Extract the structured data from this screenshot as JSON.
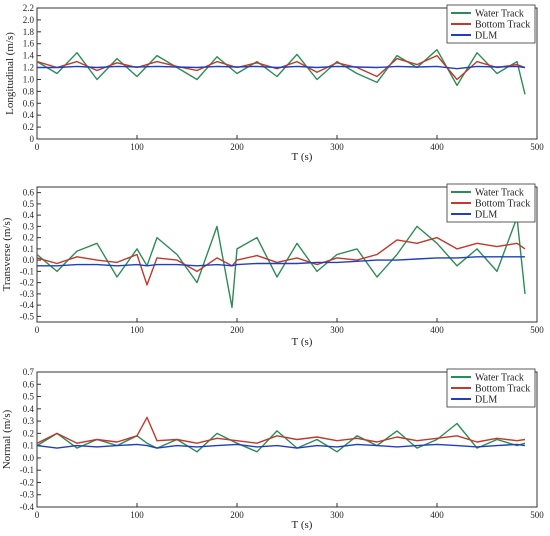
{
  "colors": {
    "water": "#2e8b57",
    "bottom": "#c0392b",
    "dlm": "#1f3fbf",
    "axis": "#333333"
  },
  "chart_data": [
    {
      "type": "line",
      "xlabel": "T (s)",
      "ylabel": "Longitudinal (m/s)",
      "xlim": [
        0,
        500
      ],
      "ylim": [
        0,
        2.2
      ],
      "xticks": [
        "0",
        "100",
        "200",
        "300",
        "400",
        "500"
      ],
      "yticks": [
        "0",
        "0.2",
        "0.4",
        "0.6",
        "0.8",
        "1.0",
        "1.2",
        "1.4",
        "1.6",
        "1.8",
        "2.0",
        "2.2"
      ],
      "legend_position": "top-right",
      "grid": false,
      "x": [
        0,
        20,
        40,
        60,
        80,
        100,
        120,
        140,
        160,
        180,
        200,
        220,
        240,
        260,
        280,
        300,
        320,
        340,
        360,
        380,
        400,
        420,
        440,
        460,
        480,
        488
      ],
      "series": [
        {
          "name": "Water Track",
          "color_key": "water",
          "values": [
            1.3,
            1.1,
            1.45,
            1.0,
            1.35,
            1.05,
            1.4,
            1.2,
            1.0,
            1.38,
            1.1,
            1.3,
            1.05,
            1.42,
            1.0,
            1.3,
            1.1,
            0.95,
            1.4,
            1.2,
            1.5,
            0.9,
            1.45,
            1.1,
            1.3,
            0.75
          ]
        },
        {
          "name": "Bottom Track",
          "color_key": "bottom",
          "values": [
            1.3,
            1.2,
            1.3,
            1.15,
            1.28,
            1.2,
            1.3,
            1.22,
            1.15,
            1.3,
            1.2,
            1.28,
            1.18,
            1.3,
            1.12,
            1.28,
            1.2,
            1.05,
            1.35,
            1.25,
            1.4,
            1.0,
            1.3,
            1.2,
            1.25,
            1.2
          ]
        },
        {
          "name": "DLM",
          "color_key": "dlm",
          "values": [
            1.2,
            1.2,
            1.22,
            1.2,
            1.22,
            1.21,
            1.22,
            1.21,
            1.2,
            1.22,
            1.21,
            1.22,
            1.2,
            1.22,
            1.2,
            1.22,
            1.21,
            1.2,
            1.22,
            1.21,
            1.22,
            1.18,
            1.22,
            1.21,
            1.22,
            1.2
          ]
        }
      ]
    },
    {
      "type": "line",
      "xlabel": "T (s)",
      "ylabel": "Transverse (m/s)",
      "xlim": [
        0,
        500
      ],
      "ylim": [
        -0.55,
        0.65
      ],
      "xticks": [
        "0",
        "100",
        "200",
        "300",
        "400",
        "500"
      ],
      "yticks": [
        "-0.5",
        "-0.4",
        "-0.3",
        "-0.2",
        "-0.1",
        "0.0",
        "0.1",
        "0.2",
        "0.3",
        "0.4",
        "0.5",
        "0.6"
      ],
      "legend_position": "top-right",
      "grid": false,
      "x": [
        0,
        20,
        40,
        60,
        80,
        100,
        110,
        120,
        140,
        160,
        180,
        195,
        200,
        220,
        240,
        260,
        280,
        300,
        320,
        340,
        360,
        380,
        400,
        420,
        440,
        460,
        480,
        488
      ],
      "series": [
        {
          "name": "Water Track",
          "color_key": "water",
          "values": [
            0.05,
            -0.1,
            0.08,
            0.15,
            -0.15,
            0.1,
            -0.05,
            0.2,
            0.05,
            -0.2,
            0.3,
            -0.42,
            0.1,
            0.2,
            -0.15,
            0.15,
            -0.1,
            0.05,
            0.1,
            -0.15,
            0.05,
            0.3,
            0.15,
            -0.05,
            0.1,
            -0.1,
            0.38,
            -0.3
          ]
        },
        {
          "name": "Bottom Track",
          "color_key": "bottom",
          "values": [
            0.02,
            -0.03,
            0.03,
            0.0,
            -0.02,
            0.05,
            -0.22,
            0.02,
            0.0,
            -0.1,
            0.02,
            -0.05,
            0.0,
            0.04,
            -0.02,
            0.02,
            -0.04,
            0.02,
            0.0,
            0.05,
            0.18,
            0.15,
            0.2,
            0.1,
            0.15,
            0.12,
            0.15,
            0.1
          ]
        },
        {
          "name": "DLM",
          "color_key": "dlm",
          "values": [
            -0.05,
            -0.05,
            -0.04,
            -0.04,
            -0.05,
            -0.04,
            -0.05,
            -0.04,
            -0.04,
            -0.05,
            -0.04,
            -0.05,
            -0.04,
            -0.03,
            -0.03,
            -0.03,
            -0.02,
            -0.02,
            -0.01,
            0.0,
            0.0,
            0.01,
            0.02,
            0.02,
            0.03,
            0.03,
            0.03,
            0.03
          ]
        }
      ]
    },
    {
      "type": "line",
      "xlabel": "T (s)",
      "ylabel": "Normal (m/s)",
      "xlim": [
        0,
        500
      ],
      "ylim": [
        -0.4,
        0.7
      ],
      "xticks": [
        "0",
        "100",
        "200",
        "300",
        "400",
        "500"
      ],
      "yticks": [
        "-0.4",
        "-0.3",
        "-0.2",
        "-0.1",
        "0.0",
        "0.1",
        "0.2",
        "0.3",
        "0.4",
        "0.5",
        "0.6",
        "0.7"
      ],
      "legend_position": "top-right",
      "grid": false,
      "x": [
        0,
        20,
        40,
        60,
        80,
        100,
        110,
        120,
        140,
        160,
        180,
        200,
        220,
        240,
        260,
        280,
        300,
        320,
        340,
        360,
        380,
        400,
        420,
        440,
        460,
        480,
        488
      ],
      "series": [
        {
          "name": "Water Track",
          "color_key": "water",
          "values": [
            0.1,
            0.2,
            0.08,
            0.15,
            0.1,
            0.18,
            0.12,
            0.08,
            0.15,
            0.05,
            0.2,
            0.12,
            0.05,
            0.22,
            0.08,
            0.15,
            0.05,
            0.18,
            0.1,
            0.22,
            0.08,
            0.15,
            0.28,
            0.08,
            0.15,
            0.1,
            0.12
          ]
        },
        {
          "name": "Bottom Track",
          "color_key": "bottom",
          "values": [
            0.12,
            0.2,
            0.12,
            0.15,
            0.13,
            0.18,
            0.33,
            0.14,
            0.15,
            0.12,
            0.16,
            0.14,
            0.12,
            0.18,
            0.15,
            0.17,
            0.14,
            0.16,
            0.13,
            0.17,
            0.14,
            0.16,
            0.18,
            0.13,
            0.16,
            0.14,
            0.15
          ]
        },
        {
          "name": "DLM",
          "color_key": "dlm",
          "values": [
            0.1,
            0.08,
            0.1,
            0.09,
            0.1,
            0.11,
            0.1,
            0.08,
            0.1,
            0.09,
            0.1,
            0.11,
            0.09,
            0.1,
            0.08,
            0.1,
            0.09,
            0.11,
            0.1,
            0.09,
            0.1,
            0.11,
            0.1,
            0.09,
            0.1,
            0.11,
            0.1
          ]
        }
      ]
    }
  ]
}
